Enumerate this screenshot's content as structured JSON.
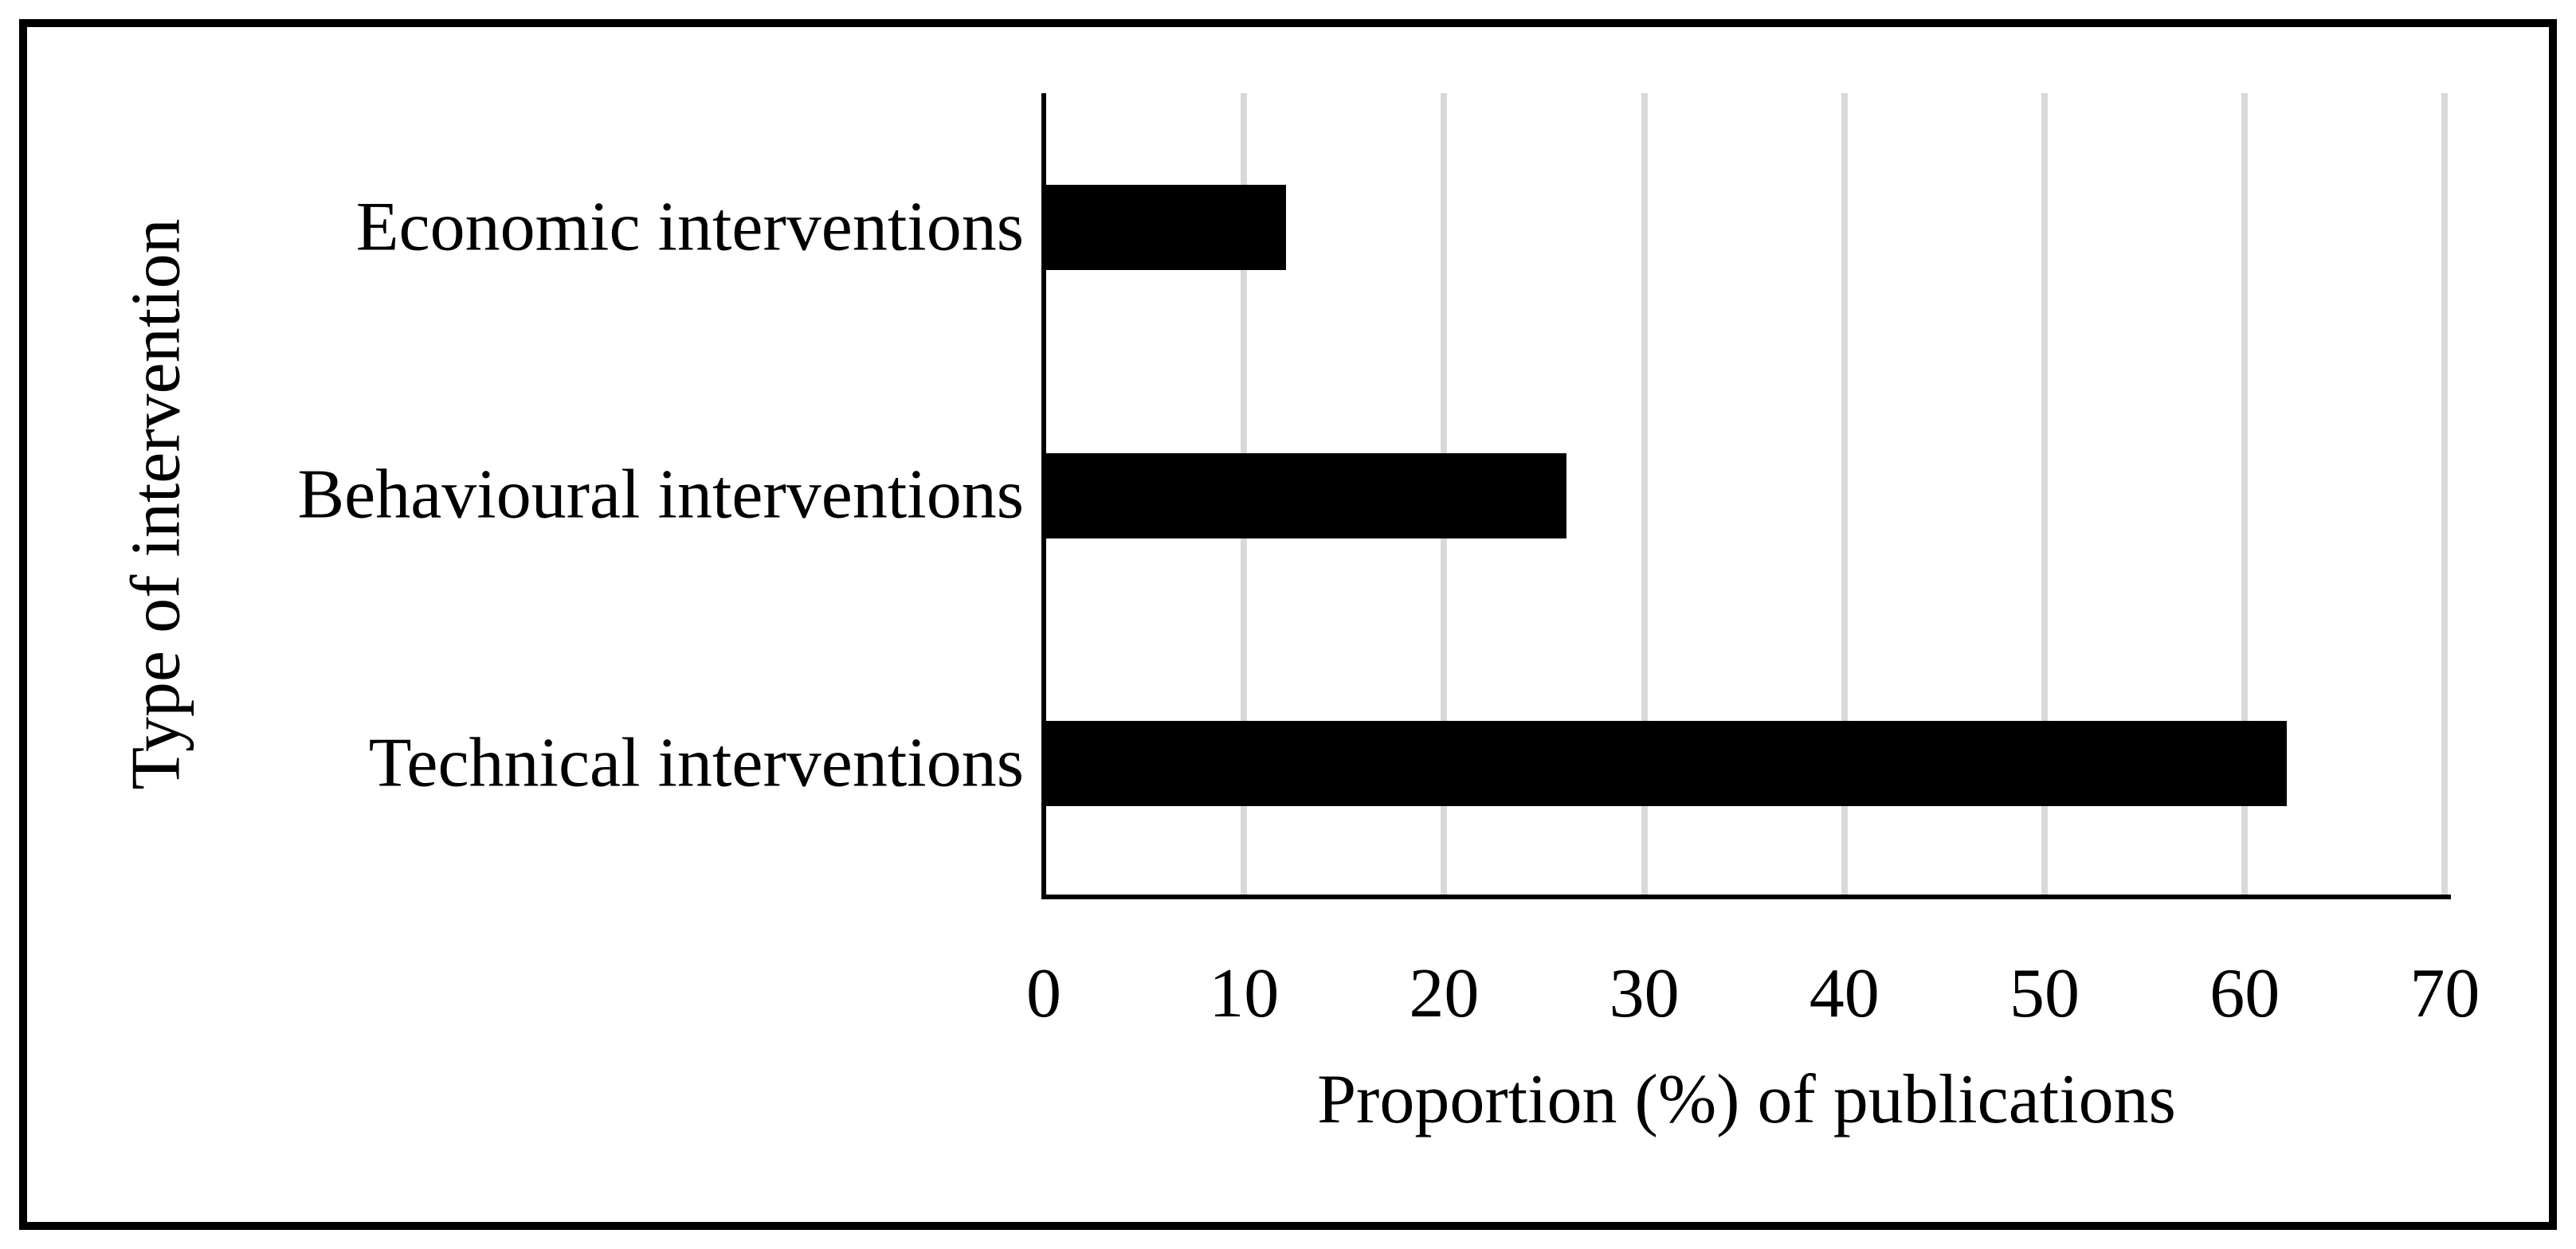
{
  "figure": {
    "background_color": "#ffffff",
    "frame_color": "#000000"
  },
  "chart_data": {
    "type": "bar",
    "orientation": "horizontal",
    "categories": [
      "Economic interventions",
      "Behavioural interventions",
      "Technical interventions"
    ],
    "values": [
      12,
      26,
      62
    ],
    "title": "",
    "xlabel": "Proportion (%) of publications",
    "ylabel": "Type of intervention",
    "xlim": [
      0,
      70
    ],
    "xticks": [
      0,
      10,
      20,
      30,
      40,
      50,
      60,
      70
    ],
    "grid": "vertical-gridlines-on",
    "legend": "none",
    "bar_color": "#000000",
    "gridline_color": "#d9d9d9",
    "axis_color": "#000000",
    "text_color": "#000000"
  }
}
